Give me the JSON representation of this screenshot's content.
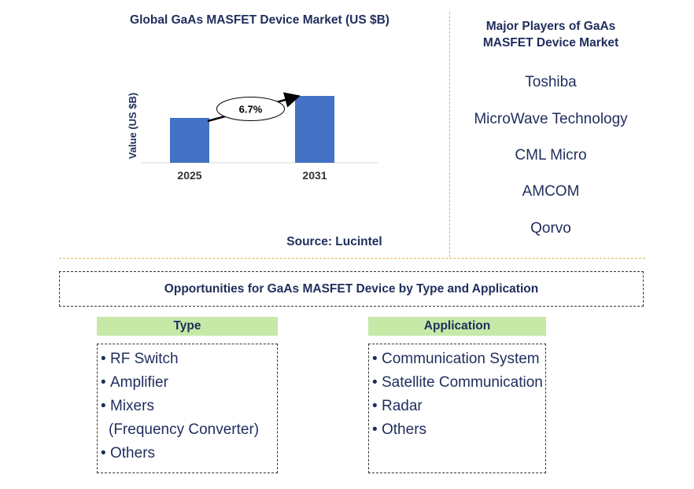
{
  "chart_data": {
    "type": "bar",
    "title": "Global GaAs MASFET Device Market (US $B)",
    "ylabel": "Value (US $B)",
    "categories": [
      "2025",
      "2031"
    ],
    "values": [
      0.57,
      0.85
    ],
    "ylim": [
      0,
      1.0
    ],
    "annotation": "6.7%",
    "bar_color": "#4472c4"
  },
  "source": "Source: Lucintel",
  "players": {
    "title_line1": "Major Players of GaAs",
    "title_line2": "MASFET Device Market",
    "items": [
      "Toshiba",
      "MicroWave Technology",
      "CML Micro",
      "AMCOM",
      "Qorvo"
    ]
  },
  "opportunities": {
    "title": "Opportunities for GaAs MASFET Device by Type and Application",
    "type_header": "Type",
    "type_items": [
      "RF Switch",
      "Amplifier",
      "Mixers",
      "(Frequency Converter)",
      "Others"
    ],
    "application_header": "Application",
    "application_items": [
      "Communication System",
      "Satellite Communication",
      "Radar",
      "Others"
    ]
  },
  "colors": {
    "text": "#1f2d5c",
    "header_bg": "#c6e9a8",
    "divider": "#e2b540"
  }
}
